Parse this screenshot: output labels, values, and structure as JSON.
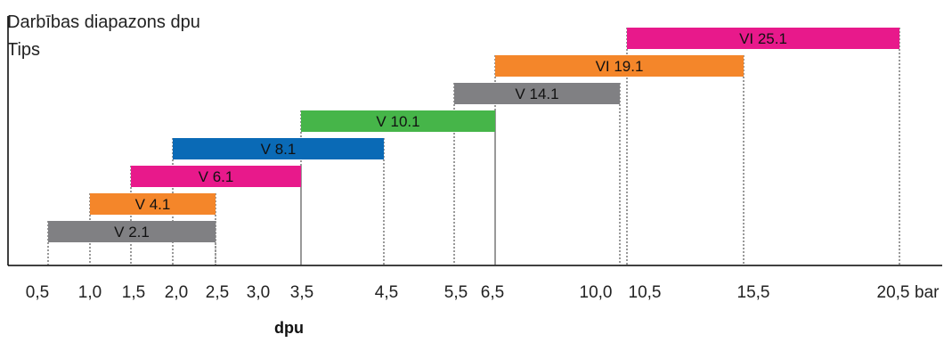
{
  "chart_data": {
    "type": "range_bar",
    "title_lines": [
      "Darbības diapazons dpu",
      "Tips"
    ],
    "xlabel": "dpu",
    "unit": "bar",
    "x_ticks": [
      "0,5",
      "1,0",
      "1,5",
      "2,0",
      "2,5",
      "3,0",
      "3,5",
      "4,5",
      "5,5",
      "6,5",
      "10,0",
      "10,5",
      "15,5",
      "20,5"
    ],
    "bars": [
      {
        "label": "V 2.1",
        "start": 0.5,
        "end": 2.5,
        "color": "#808083"
      },
      {
        "label": "V 4.1",
        "start": 1.0,
        "end": 2.5,
        "color": "#f4862a"
      },
      {
        "label": "V 6.1",
        "start": 1.5,
        "end": 3.5,
        "color": "#e8198b"
      },
      {
        "label": "V 8.1",
        "start": 2.0,
        "end": 4.5,
        "color": "#0a6ab6"
      },
      {
        "label": "V 10.1",
        "start": 3.5,
        "end": 6.5,
        "color": "#46b549"
      },
      {
        "label": "V 14.1",
        "start": 5.5,
        "end": 10.0,
        "color": "#808083"
      },
      {
        "label": "VI 19.1",
        "start": 6.5,
        "end": 15.5,
        "color": "#f4862a"
      },
      {
        "label": "VI 25.1",
        "start": 10.5,
        "end": 20.5,
        "color": "#e8198b"
      }
    ]
  }
}
